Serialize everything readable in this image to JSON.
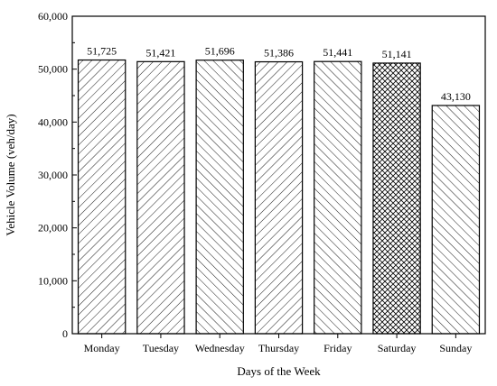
{
  "chart_data": {
    "type": "bar",
    "categories": [
      "Monday",
      "Tuesday",
      "Wednesday",
      "Thursday",
      "Friday",
      "Saturday",
      "Sunday"
    ],
    "values": [
      51725,
      51421,
      51696,
      51386,
      51441,
      51141,
      43130
    ],
    "data_labels": [
      "51,725",
      "51,421",
      "51,696",
      "51,386",
      "51,441",
      "51,141",
      "43,130"
    ],
    "patterns": [
      "diag-right",
      "diag-right",
      "diag-left",
      "diag-right",
      "diag-left",
      "crosshatch",
      "diag-left"
    ],
    "title": "",
    "xlabel": "Days of the Week",
    "ylabel": "Vehicle Volume (veh/day)",
    "ylim": [
      0,
      60000
    ],
    "yticks": [
      0,
      10000,
      20000,
      30000,
      40000,
      50000,
      60000
    ],
    "ytick_labels": [
      "0",
      "10,000",
      "20,000",
      "30,000",
      "40,000",
      "50,000",
      "60,000"
    ],
    "grid": false,
    "legend": "none",
    "colors": {
      "bar_fill": "#ffffff",
      "bar_stroke": "#000000",
      "axis": "#000000"
    }
  }
}
